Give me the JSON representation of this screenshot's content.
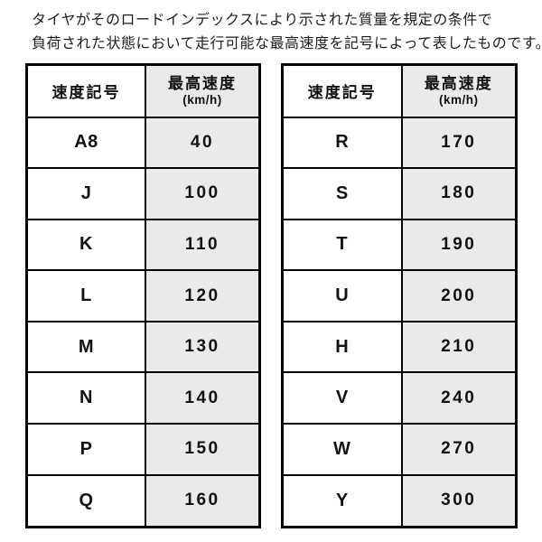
{
  "intro": {
    "line1": "タイヤがそのロードインデックスにより示された質量を規定の条件で",
    "line2": "負荷された状態において走行可能な最高速度を記号によって表したものです。"
  },
  "tables": [
    {
      "headers": {
        "symbol": "速度記号",
        "speed": "最高速度",
        "unit": "(km/h)"
      },
      "rows": [
        {
          "symbol": "A8",
          "speed": "40"
        },
        {
          "symbol": "J",
          "speed": "100"
        },
        {
          "symbol": "K",
          "speed": "110"
        },
        {
          "symbol": "L",
          "speed": "120"
        },
        {
          "symbol": "M",
          "speed": "130"
        },
        {
          "symbol": "N",
          "speed": "140"
        },
        {
          "symbol": "P",
          "speed": "150"
        },
        {
          "symbol": "Q",
          "speed": "160"
        }
      ]
    },
    {
      "headers": {
        "symbol": "速度記号",
        "speed": "最高速度",
        "unit": "(km/h)"
      },
      "rows": [
        {
          "symbol": "R",
          "speed": "170"
        },
        {
          "symbol": "S",
          "speed": "180"
        },
        {
          "symbol": "T",
          "speed": "190"
        },
        {
          "symbol": "U",
          "speed": "200"
        },
        {
          "symbol": "H",
          "speed": "210"
        },
        {
          "symbol": "V",
          "speed": "240"
        },
        {
          "symbol": "W",
          "speed": "270"
        },
        {
          "symbol": "Y",
          "speed": "300"
        }
      ]
    }
  ],
  "colors": {
    "speed_cell_bg": "#eaeaea",
    "symbol_cell_bg": "#ffffff",
    "border": "#000000",
    "text": "#1a1a1a"
  }
}
